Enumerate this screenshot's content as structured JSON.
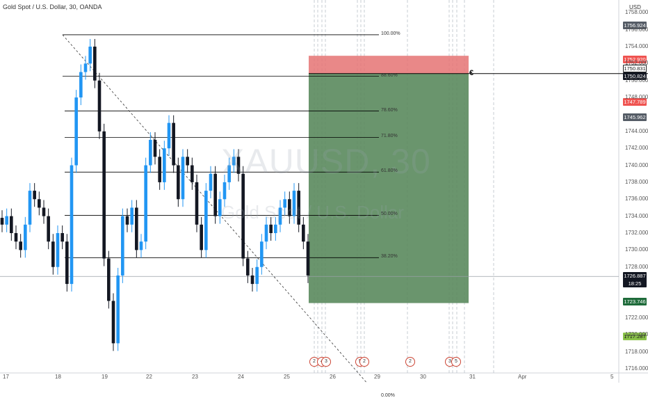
{
  "header": {
    "title": "Gold Spot / U.S. Dollar, 30, OANDA",
    "currency": "USD"
  },
  "watermark": {
    "symbol": "XAUUSD, 30",
    "description": "Gold Spot / U.S. Dollar"
  },
  "colors": {
    "up": "#2196f3",
    "down": "#131722",
    "stop_zone": "#e57373",
    "target_zone": "#5a8a5d",
    "fib_line": "#000000"
  },
  "price_axis": {
    "ticks": [
      "1758.000",
      "1756.000",
      "1754.000",
      "1752.000",
      "1750.000",
      "1748.000",
      "1744.000",
      "1742.000",
      "1740.000",
      "1738.000",
      "1736.000",
      "1734.000",
      "1732.000",
      "1730.000",
      "1728.000",
      "1722.000",
      "1720.000",
      "1718.000",
      "1716.000"
    ],
    "tags": {
      "fib_top": "1756.924",
      "stop": "1752.920",
      "entry_top": "1750.831",
      "entry": "1750.824",
      "prev_mark": "1747.789",
      "mark2": "1745.962",
      "last_price": "1726.887",
      "countdown": "18:25",
      "target": "1723.746",
      "bottom": "1717.287"
    }
  },
  "time_axis": {
    "ticks": [
      "17",
      "18",
      "19",
      "22",
      "23",
      "24",
      "25",
      "26",
      "29",
      "30",
      "31",
      "Apr",
      "5"
    ]
  },
  "fibonacci": {
    "levels": [
      "100.00%",
      "88.60%",
      "78.60%",
      "71.80%",
      "61.80%",
      "50.00%",
      "38.20%",
      "0.00%"
    ]
  },
  "events": [
    "2",
    "4",
    "3",
    "5",
    "2",
    "2",
    "3",
    "5"
  ],
  "position_icon": "euro-icon",
  "chart_data": {
    "type": "candlestick",
    "title": "Gold Spot / U.S. Dollar, 30, OANDA",
    "ylabel": "USD",
    "ylim": [
      1715.5,
      1759.5
    ],
    "x_labels": [
      "17",
      "18",
      "19",
      "22",
      "23",
      "24",
      "25",
      "26",
      "29",
      "30",
      "31",
      "Apr",
      "5"
    ],
    "series": [
      {
        "name": "close",
        "values": [
          1733,
          1734,
          1732,
          1731,
          1730,
          1733,
          1737,
          1736,
          1735,
          1734,
          1731,
          1728,
          1732,
          1731,
          1726,
          1740,
          1748,
          1751,
          1752,
          1754,
          1750,
          1744,
          1729,
          1724,
          1719,
          1727,
          1734,
          1733,
          1735,
          1730,
          1731,
          1740,
          1743,
          1741,
          1738,
          1742,
          1745,
          1740,
          1736,
          1741,
          1740,
          1738,
          1733,
          1730,
          1737,
          1739,
          1734,
          1736,
          1738,
          1740,
          1741,
          1739,
          1729,
          1727,
          1726,
          1728,
          1731,
          1733,
          1732,
          1733,
          1735,
          1736,
          1734,
          1737,
          1733,
          1731,
          1727
        ]
      }
    ],
    "fib_levels": [
      {
        "level": "100.00%",
        "price": 1755.4
      },
      {
        "level": "88.60%",
        "price": 1750.5
      },
      {
        "level": "78.60%",
        "price": 1746.4
      },
      {
        "level": "71.80%",
        "price": 1743.3
      },
      {
        "level": "61.80%",
        "price": 1739.2
      },
      {
        "level": "50.00%",
        "price": 1734.1
      },
      {
        "level": "38.20%",
        "price": 1729.1
      },
      {
        "level": "0.00%",
        "price": 1712.7
      }
    ],
    "position": {
      "type": "short",
      "stop": 1752.92,
      "entry": 1750.824,
      "target": 1723.746
    },
    "last_price": 1726.887
  }
}
